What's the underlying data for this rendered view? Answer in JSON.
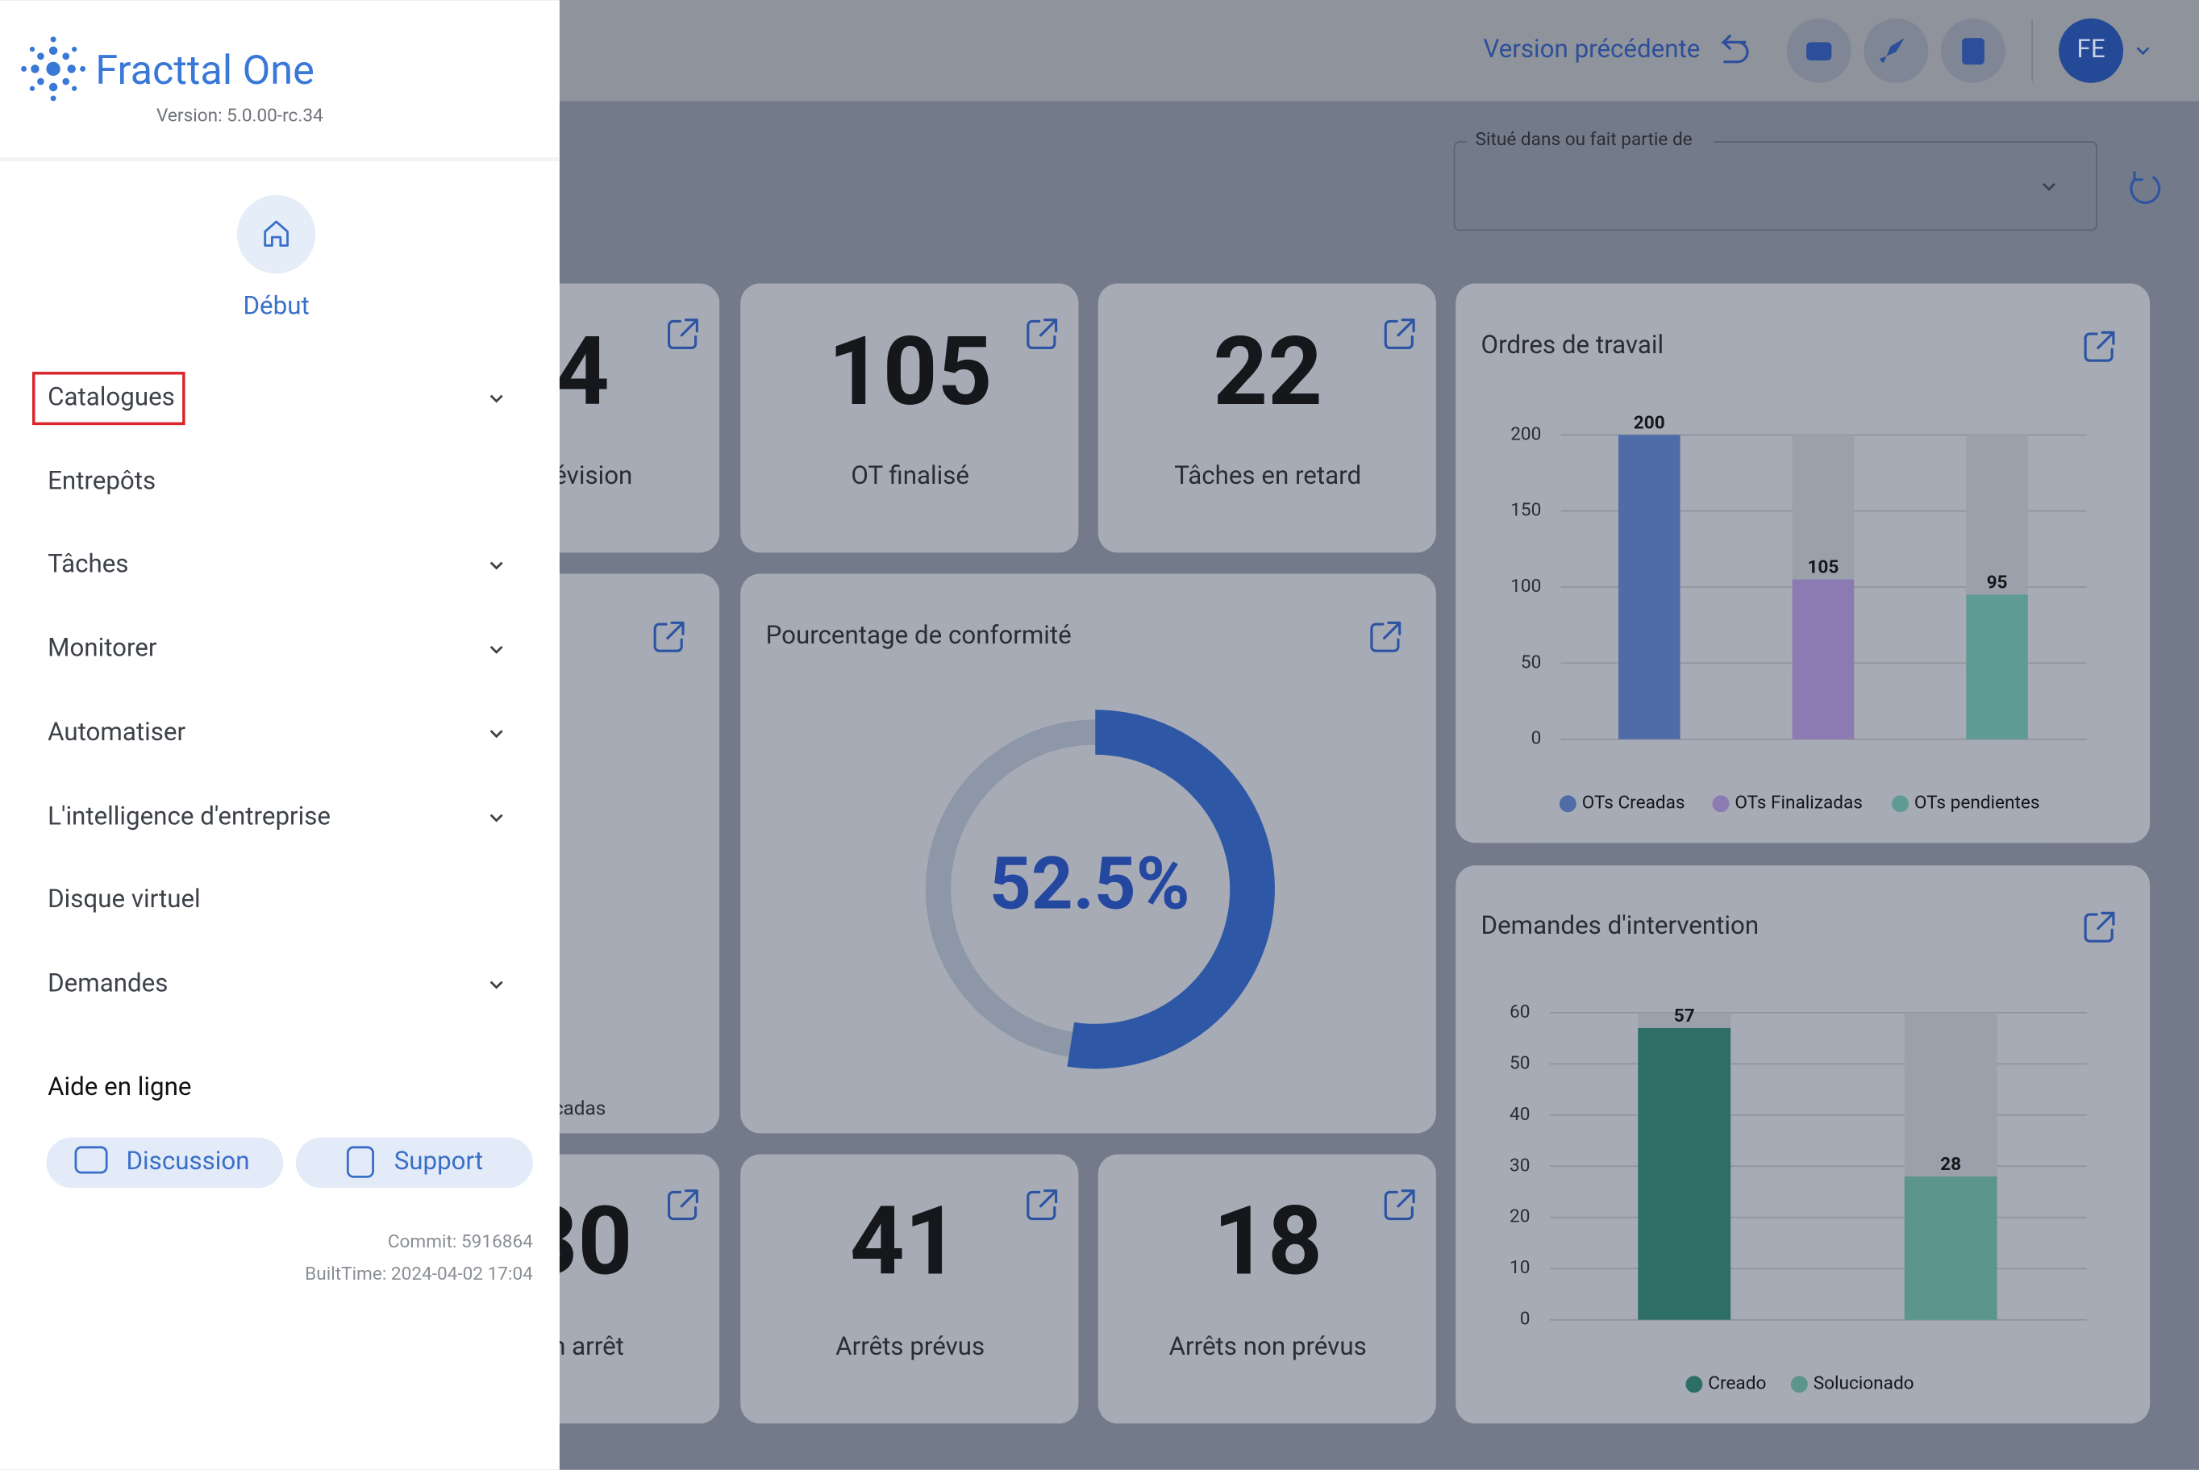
{
  "header": {
    "logo": "Fracttal One",
    "version": "Version: 5.0.00-rc.34",
    "previous": "Version précédente",
    "avatar": "FE"
  },
  "sidebar": {
    "home": "Début",
    "menu": [
      "Catalogues",
      "Entrepôts",
      "Tâches",
      "Monitorer",
      "Automatiser",
      "L'intelligence d'entreprise",
      "Disque virtuel",
      "Demandes"
    ],
    "help": "Aide en ligne",
    "buttons": [
      "Discussion",
      "Support"
    ],
    "commit": "Commit: 5916864",
    "built": "BuiltTime: 2024-04-02 17:04"
  },
  "filter": {
    "label": "Situé dans ou fait partie de"
  },
  "cards": [
    {
      "value": "4",
      "label": "évision"
    },
    {
      "value": "105",
      "label": "OT finalisé"
    },
    {
      "value": "22",
      "label": "Tâches en retard"
    },
    {
      "label": "cadas"
    },
    {
      "value": "30",
      "label": "n arrêt"
    },
    {
      "value": "41",
      "label": "Arrêts prévus"
    },
    {
      "value": "18",
      "label": "Arrêts non prévus"
    }
  ],
  "chart_data": [
    {
      "type": "donut",
      "title": "Pourcentage de conformité",
      "values": [
        52.5
      ],
      "value_labels": [
        "52.5%"
      ],
      "color": "#2e57a6"
    },
    {
      "type": "bar",
      "title": "Ordres de travail",
      "ylim": [
        0,
        200
      ],
      "yticks": [
        0,
        50,
        100,
        150,
        200
      ],
      "grid": true,
      "series": [
        {
          "name": "OTs Creadas",
          "color": "#4f6ca8",
          "values": [
            200
          ]
        },
        {
          "name": "OTs Finalizadas",
          "color": "#8c7ab2",
          "values": [
            105
          ]
        },
        {
          "name": "OTs pendientes",
          "color": "#5f9b95",
          "values": [
            95
          ]
        }
      ]
    },
    {
      "type": "bar",
      "title": "Demandes d'intervention",
      "ylim": [
        0,
        60
      ],
      "yticks": [
        0,
        10,
        20,
        30,
        40,
        50,
        60
      ],
      "grid": true,
      "series": [
        {
          "name": "Creado",
          "color": "#2d6f67",
          "values": [
            57
          ]
        },
        {
          "name": "Solucionado",
          "color": "#5b958e",
          "values": [
            28
          ]
        }
      ]
    }
  ]
}
